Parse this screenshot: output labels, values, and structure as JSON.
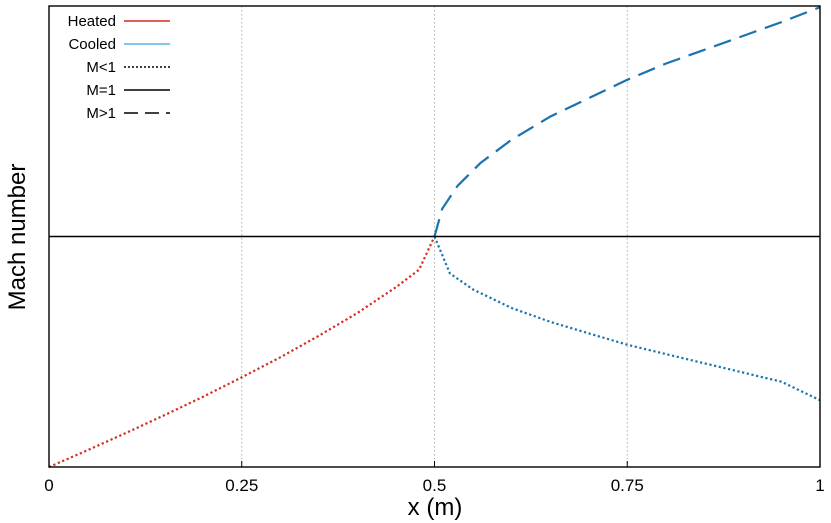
{
  "chart_data": {
    "type": "line",
    "xlabel": "x (m)",
    "ylabel": "Mach number",
    "xlim": [
      0,
      1
    ],
    "ylim": [
      0,
      2
    ],
    "x_ticks": [
      0,
      0.25,
      0.5,
      0.75,
      1
    ],
    "x_tick_labels": [
      "0",
      "0.25",
      "0.5",
      "0.75",
      "1"
    ],
    "grid": "vertical dotted at x ticks",
    "legend_position": "top-left",
    "legend": [
      {
        "label": "Heated",
        "color": "#d62b1f",
        "style": "solid"
      },
      {
        "label": "Cooled",
        "color": "#56b4e9",
        "style": "solid"
      },
      {
        "label": "M<1",
        "color": "#000000",
        "style": "dotted"
      },
      {
        "label": "M=1",
        "color": "#000000",
        "style": "solid"
      },
      {
        "label": "M>1",
        "color": "#000000",
        "style": "dashed"
      }
    ],
    "series": [
      {
        "name": "Heated",
        "color": "#d62b1f",
        "style": "dotted",
        "x": [
          0,
          0.05,
          0.1,
          0.15,
          0.2,
          0.25,
          0.3,
          0.35,
          0.4,
          0.45,
          0.48,
          0.5
        ],
        "y": [
          0,
          0.073,
          0.148,
          0.225,
          0.305,
          0.389,
          0.476,
          0.569,
          0.668,
          0.78,
          0.856,
          1.0
        ]
      },
      {
        "name": "Cooled",
        "color": "#1a73b0",
        "style": "dotted",
        "x": [
          0.5,
          0.52,
          0.55,
          0.6,
          0.65,
          0.7,
          0.75,
          0.8,
          0.85,
          0.9,
          0.95,
          1.0
        ],
        "y": [
          1.0,
          0.84,
          0.77,
          0.69,
          0.63,
          0.58,
          0.53,
          0.49,
          0.45,
          0.41,
          0.37,
          0.29
        ]
      },
      {
        "name": "Cooled",
        "color": "#1a73b0",
        "style": "dashed",
        "x": [
          0.5,
          0.51,
          0.53,
          0.56,
          0.6,
          0.65,
          0.7,
          0.75,
          0.8,
          0.85,
          0.9,
          0.95,
          1.0
        ],
        "y": [
          1.0,
          1.12,
          1.22,
          1.32,
          1.42,
          1.52,
          1.6,
          1.68,
          1.75,
          1.81,
          1.87,
          1.93,
          1.995
        ]
      },
      {
        "name": "M=1",
        "color": "#000000",
        "style": "solid",
        "x": [
          0,
          1
        ],
        "y": [
          1,
          1
        ]
      }
    ]
  }
}
